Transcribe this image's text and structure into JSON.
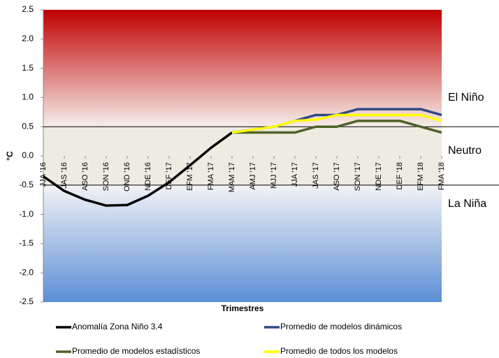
{
  "chart_data": {
    "type": "line",
    "y_label": "°C",
    "x_label": "Trimestres",
    "categories": [
      "JJA '16",
      "JAS '16",
      "ASO '16",
      "SON '16",
      "OND '16",
      "NDE '16",
      "DEF '17",
      "EFM '17",
      "FMA '17",
      "MAM '17",
      "AMJ '17",
      "MJJ '17",
      "JJA '17",
      "JAS '17",
      "ASO '17",
      "SON '17",
      "NDE '17",
      "DEF '18",
      "EFM '18",
      "FMA '18"
    ],
    "series": [
      {
        "name": "Anomalía Zona Niño 3.4",
        "color": "#000000",
        "values": [
          -0.35,
          -0.6,
          -0.75,
          -0.85,
          -0.84,
          -0.68,
          -0.45,
          -0.16,
          0.14,
          0.4,
          null,
          null,
          null,
          null,
          null,
          null,
          null,
          null,
          null,
          null
        ]
      },
      {
        "name": "Promedio de modelos dinámicos",
        "color": "#2e4a87",
        "values": [
          null,
          null,
          null,
          null,
          null,
          null,
          null,
          null,
          null,
          0.4,
          0.45,
          0.5,
          0.6,
          0.7,
          0.7,
          0.8,
          0.8,
          0.8,
          0.8,
          0.7
        ]
      },
      {
        "name": "Promedio de modelos estadísticos",
        "color": "#4f6228",
        "values": [
          null,
          null,
          null,
          null,
          null,
          null,
          null,
          null,
          null,
          0.4,
          0.4,
          0.4,
          0.4,
          0.5,
          0.5,
          0.6,
          0.6,
          0.6,
          0.5,
          0.4
        ]
      },
      {
        "name": "Promedio de todos los modelos",
        "color": "#ffff00",
        "values": [
          null,
          null,
          null,
          null,
          null,
          null,
          null,
          null,
          null,
          0.4,
          0.45,
          0.5,
          0.6,
          0.62,
          0.7,
          0.7,
          0.7,
          0.7,
          0.7,
          0.6
        ]
      }
    ],
    "ylim": [
      -2.5,
      2.5
    ],
    "yticks": [
      2.5,
      {
        "value": 2,
        "label": "2.0"
      },
      1.5,
      {
        "value": 1,
        "label": "1.0"
      },
      0.5,
      {
        "value": 0,
        "label": "0.0"
      },
      -0.5,
      {
        "value": -1,
        "label": "-1.0"
      },
      -1.5,
      {
        "value": -2,
        "label": "-2.0"
      },
      -2.5
    ],
    "thresholds": [
      0.5,
      -0.5
    ],
    "annotations": [
      "El Niño",
      "Neutro",
      "La Niña"
    ],
    "grid": false
  }
}
